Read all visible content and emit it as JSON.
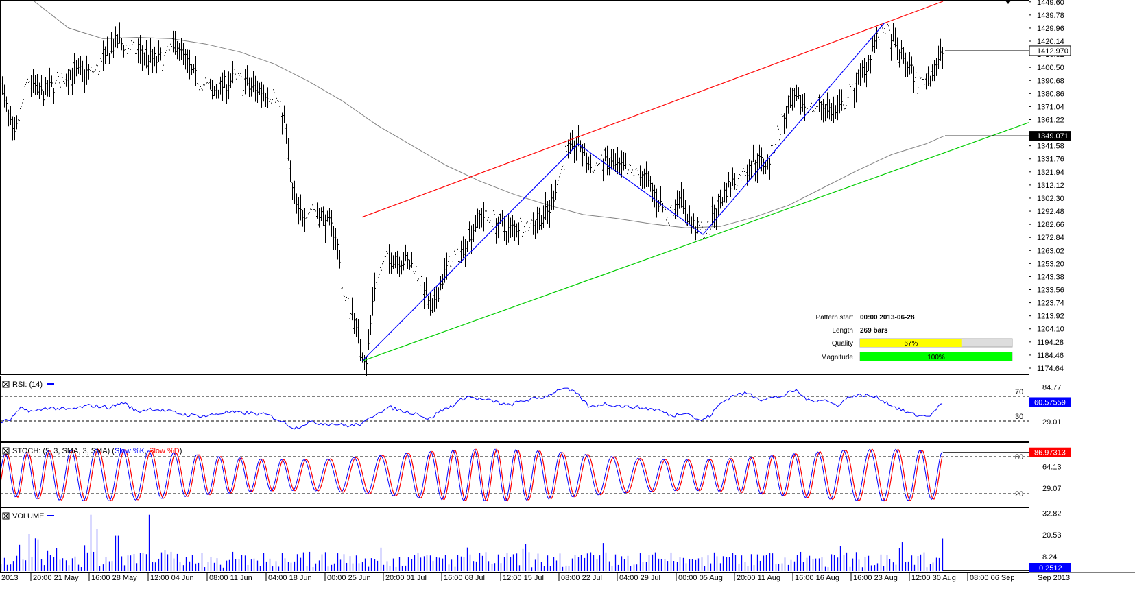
{
  "chart_data": [
    {
      "type": "candlestick",
      "panel": "price",
      "ylim": [
        1170,
        1450
      ],
      "y_ticks": [
        "1449.60",
        "1439.78",
        "1429.96",
        "1420.14",
        "1410.32",
        "1400.50",
        "1390.68",
        "1380.86",
        "1371.04",
        "1361.22",
        "1349.071",
        "1341.58",
        "1331.76",
        "1321.94",
        "1312.12",
        "1302.30",
        "1292.48",
        "1282.66",
        "1272.84",
        "1263.02",
        "1253.20",
        "1243.38",
        "1233.56",
        "1223.74",
        "1213.92",
        "1204.10",
        "1194.28",
        "1184.46",
        "1174.64"
      ],
      "current_price_label": "1412.970",
      "moving_average_label": "1349.071",
      "price_path": [
        [
          0,
          1390
        ],
        [
          20,
          1345
        ],
        [
          40,
          1392
        ],
        [
          60,
          1380
        ],
        [
          100,
          1395
        ],
        [
          140,
          1398
        ],
        [
          170,
          1420
        ],
        [
          200,
          1412
        ],
        [
          230,
          1405
        ],
        [
          260,
          1418
        ],
        [
          280,
          1395
        ],
        [
          310,
          1382
        ],
        [
          340,
          1392
        ],
        [
          370,
          1385
        ],
        [
          400,
          1380
        ],
        [
          415,
          1360
        ],
        [
          425,
          1310
        ],
        [
          435,
          1290
        ],
        [
          455,
          1295
        ],
        [
          475,
          1285
        ],
        [
          490,
          1275
        ],
        [
          500,
          1230
        ],
        [
          515,
          1215
        ],
        [
          525,
          1190
        ],
        [
          535,
          1180
        ],
        [
          545,
          1235
        ],
        [
          560,
          1255
        ],
        [
          575,
          1258
        ],
        [
          590,
          1255
        ],
        [
          605,
          1250
        ],
        [
          620,
          1230
        ],
        [
          630,
          1215
        ],
        [
          640,
          1235
        ],
        [
          655,
          1255
        ],
        [
          670,
          1260
        ],
        [
          685,
          1275
        ],
        [
          700,
          1290
        ],
        [
          720,
          1285
        ],
        [
          740,
          1278
        ],
        [
          760,
          1282
        ],
        [
          780,
          1285
        ],
        [
          800,
          1292
        ],
        [
          815,
          1320
        ],
        [
          830,
          1340
        ],
        [
          845,
          1343
        ],
        [
          860,
          1325
        ],
        [
          880,
          1330
        ],
        [
          900,
          1325
        ],
        [
          920,
          1322
        ],
        [
          940,
          1318
        ],
        [
          960,
          1300
        ],
        [
          975,
          1288
        ],
        [
          990,
          1305
        ],
        [
          1005,
          1285
        ],
        [
          1020,
          1277
        ],
        [
          1030,
          1278
        ],
        [
          1045,
          1295
        ],
        [
          1060,
          1310
        ],
        [
          1080,
          1320
        ],
        [
          1100,
          1330
        ],
        [
          1120,
          1328
        ],
        [
          1140,
          1360
        ],
        [
          1160,
          1375
        ],
        [
          1180,
          1370
        ],
        [
          1200,
          1372
        ],
        [
          1220,
          1365
        ],
        [
          1240,
          1382
        ],
        [
          1260,
          1398
        ],
        [
          1275,
          1420
        ],
        [
          1290,
          1430
        ],
        [
          1305,
          1415
        ],
        [
          1320,
          1405
        ],
        [
          1340,
          1388
        ],
        [
          1355,
          1395
        ],
        [
          1365,
          1400
        ],
        [
          1375,
          1413
        ]
      ],
      "ma_path": [
        [
          50,
          1450
        ],
        [
          100,
          1430
        ],
        [
          150,
          1422
        ],
        [
          200,
          1423
        ],
        [
          250,
          1422
        ],
        [
          300,
          1418
        ],
        [
          350,
          1412
        ],
        [
          400,
          1403
        ],
        [
          450,
          1390
        ],
        [
          500,
          1375
        ],
        [
          550,
          1357
        ],
        [
          600,
          1342
        ],
        [
          650,
          1327
        ],
        [
          700,
          1315
        ],
        [
          750,
          1305
        ],
        [
          800,
          1297
        ],
        [
          850,
          1290
        ],
        [
          900,
          1287
        ],
        [
          950,
          1283
        ],
        [
          1000,
          1280
        ],
        [
          1050,
          1281
        ],
        [
          1100,
          1288
        ],
        [
          1150,
          1297
        ],
        [
          1200,
          1310
        ],
        [
          1250,
          1323
        ],
        [
          1300,
          1335
        ],
        [
          1350,
          1343
        ],
        [
          1377,
          1349
        ]
      ],
      "pattern_lines": {
        "resistance": [
          [
            528,
            1288
          ],
          [
            1375,
            1450
          ]
        ],
        "support": [
          [
            528,
            1180
          ],
          [
            1500,
            1359
          ]
        ],
        "zigzag": [
          [
            528,
            1180
          ],
          [
            843,
            1343
          ],
          [
            1025,
            1275
          ],
          [
            1290,
            1434
          ]
        ]
      },
      "pattern_info": {
        "pattern_start_label": "Pattern start",
        "pattern_start": "00:00 2013-06-28",
        "length_label": "Length",
        "length": "269 bars",
        "quality_label": "Quality",
        "quality": "67%",
        "quality_fraction": 0.67,
        "magnitude_label": "Magnitude",
        "magnitude": "100%",
        "magnitude_fraction": 1.0
      }
    },
    {
      "type": "line",
      "panel": "rsi",
      "title": "RSI: (14)",
      "ylim": [
        0,
        100
      ],
      "y_ticks": [
        "84.77",
        "60.57559",
        "29.01"
      ],
      "level_labels": [
        "70",
        "30"
      ],
      "current_value": "60.57559",
      "path": [
        [
          0,
          28
        ],
        [
          15,
          32
        ],
        [
          30,
          50
        ],
        [
          50,
          45
        ],
        [
          70,
          52
        ],
        [
          100,
          48
        ],
        [
          130,
          55
        ],
        [
          160,
          52
        ],
        [
          180,
          60
        ],
        [
          200,
          45
        ],
        [
          220,
          50
        ],
        [
          250,
          45
        ],
        [
          270,
          40
        ],
        [
          300,
          38
        ],
        [
          330,
          44
        ],
        [
          360,
          43
        ],
        [
          390,
          40
        ],
        [
          410,
          30
        ],
        [
          430,
          18
        ],
        [
          450,
          28
        ],
        [
          470,
          26
        ],
        [
          490,
          25
        ],
        [
          510,
          22
        ],
        [
          530,
          26
        ],
        [
          550,
          44
        ],
        [
          570,
          52
        ],
        [
          590,
          45
        ],
        [
          610,
          42
        ],
        [
          625,
          32
        ],
        [
          640,
          45
        ],
        [
          660,
          55
        ],
        [
          680,
          70
        ],
        [
          700,
          65
        ],
        [
          720,
          62
        ],
        [
          740,
          55
        ],
        [
          760,
          62
        ],
        [
          790,
          68
        ],
        [
          800,
          72
        ],
        [
          820,
          84
        ],
        [
          840,
          75
        ],
        [
          860,
          52
        ],
        [
          880,
          58
        ],
        [
          900,
          55
        ],
        [
          930,
          52
        ],
        [
          960,
          48
        ],
        [
          980,
          38
        ],
        [
          1000,
          45
        ],
        [
          1020,
          30
        ],
        [
          1035,
          38
        ],
        [
          1050,
          58
        ],
        [
          1070,
          72
        ],
        [
          1090,
          75
        ],
        [
          1110,
          65
        ],
        [
          1140,
          70
        ],
        [
          1160,
          80
        ],
        [
          1180,
          62
        ],
        [
          1200,
          65
        ],
        [
          1220,
          55
        ],
        [
          1240,
          70
        ],
        [
          1260,
          72
        ],
        [
          1280,
          68
        ],
        [
          1300,
          55
        ],
        [
          1320,
          45
        ],
        [
          1340,
          38
        ],
        [
          1360,
          40
        ],
        [
          1365,
          50
        ],
        [
          1375,
          60
        ]
      ]
    },
    {
      "type": "line",
      "panel": "stoch",
      "title": "STOCH: (5, 3, SMA, 3, SMA)",
      "series": [
        {
          "name": "Slow %K",
          "color": "#0000ff"
        },
        {
          "name": "Slow %D",
          "color": "#ff0000"
        }
      ],
      "ylim": [
        0,
        100
      ],
      "y_ticks": [
        "86.97313",
        "64.13",
        "29.07"
      ],
      "level_labels": [
        "80",
        "20"
      ],
      "current_value": "86.97313",
      "wave_period_px": 34,
      "wave_count": 40
    },
    {
      "type": "bar",
      "panel": "volume",
      "title": "VOLUME",
      "ylim": [
        0,
        35
      ],
      "y_ticks": [
        "32.82",
        "20.53",
        "8.24"
      ],
      "current_value": "0.2512",
      "bar_count": 300,
      "spikes": [
        [
          130,
          32
        ],
        [
          218,
          32
        ],
        [
          142,
          24
        ],
        [
          40,
          21
        ],
        [
          170,
          20
        ],
        [
          55,
          18
        ]
      ]
    }
  ],
  "x_axis": {
    "labels": [
      "2013",
      "20:00 21 May",
      "16:00 28 May",
      "12:00 04 Jun",
      "08:00 11 Jun",
      "04:00 18 Jun",
      "00:00 25 Jun",
      "20:00 01 Jul",
      "16:00 08 Jul",
      "12:00 15 Jul",
      "08:00 22 Jul",
      "04:00 29 Jul",
      "00:00 05 Aug",
      "20:00 11 Aug",
      "16:00 16 Aug",
      "16:00 23 Aug",
      "12:00 30 Aug",
      "08:00 06 Sep",
      "Sep 2013"
    ]
  },
  "colors": {
    "price": "#000000",
    "moving_average": "#808080",
    "resistance": "#ff0000",
    "support": "#00cc00",
    "zigzag": "#0000ff",
    "rsi": "#0000ff",
    "volume": "#0000ff",
    "value_box_red": "#ff0000",
    "value_box_blue": "#0000ff",
    "quality_fill": "#ffff00",
    "magnitude_fill": "#00ff00"
  }
}
